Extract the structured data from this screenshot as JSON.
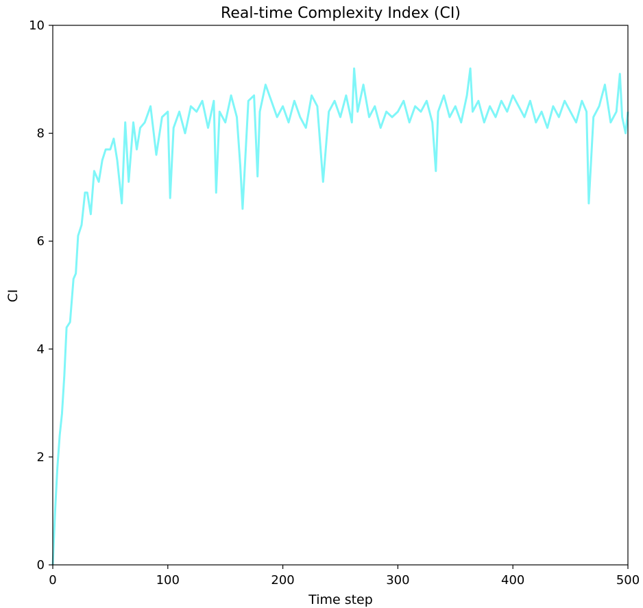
{
  "chart_data": {
    "type": "line",
    "title": "Real-time Complexity Index (CI)",
    "xlabel": "Time step",
    "ylabel": "CI",
    "xlim": [
      0,
      500
    ],
    "ylim": [
      0,
      10
    ],
    "xticks": [
      0,
      100,
      200,
      300,
      400,
      500
    ],
    "yticks": [
      0,
      2,
      4,
      6,
      8,
      10
    ],
    "grid": false,
    "legend": "none",
    "color": "#7ff6f8",
    "series": [
      {
        "x": [
          0,
          2,
          4,
          6,
          8,
          10,
          12,
          15,
          18,
          20,
          22,
          25,
          28,
          30,
          33,
          36,
          40,
          43,
          46,
          50,
          53,
          56,
          60,
          63,
          66,
          70,
          73,
          76,
          80,
          85,
          90,
          95,
          100,
          102,
          105,
          110,
          115,
          120,
          125,
          130,
          135,
          140,
          142,
          145,
          150,
          155,
          160,
          163,
          165,
          170,
          175,
          178,
          180,
          185,
          190,
          195,
          200,
          205,
          210,
          215,
          220,
          225,
          230,
          235,
          240,
          245,
          250,
          255,
          260,
          262,
          265,
          270,
          275,
          280,
          285,
          290,
          295,
          300,
          305,
          310,
          315,
          320,
          325,
          330,
          333,
          335,
          340,
          345,
          350,
          355,
          360,
          363,
          365,
          370,
          375,
          380,
          385,
          390,
          395,
          400,
          405,
          410,
          415,
          420,
          425,
          430,
          435,
          440,
          445,
          450,
          455,
          460,
          464,
          466,
          470,
          475,
          480,
          485,
          490,
          493,
          495,
          498,
          500
        ],
        "y": [
          0.0,
          1.0,
          1.8,
          2.4,
          2.8,
          3.5,
          4.4,
          4.5,
          5.3,
          5.4,
          6.1,
          6.3,
          6.9,
          6.9,
          6.5,
          7.3,
          7.1,
          7.5,
          7.7,
          7.7,
          7.9,
          7.5,
          6.7,
          8.2,
          7.1,
          8.2,
          7.7,
          8.1,
          8.2,
          8.5,
          7.6,
          8.3,
          8.4,
          6.8,
          8.1,
          8.4,
          8.0,
          8.5,
          8.4,
          8.6,
          8.1,
          8.6,
          6.9,
          8.4,
          8.2,
          8.7,
          8.3,
          7.4,
          6.6,
          8.6,
          8.7,
          7.2,
          8.4,
          8.9,
          8.6,
          8.3,
          8.5,
          8.2,
          8.6,
          8.3,
          8.1,
          8.7,
          8.5,
          7.1,
          8.4,
          8.6,
          8.3,
          8.7,
          8.2,
          9.2,
          8.4,
          8.9,
          8.3,
          8.5,
          8.1,
          8.4,
          8.3,
          8.4,
          8.6,
          8.2,
          8.5,
          8.4,
          8.6,
          8.2,
          7.3,
          8.4,
          8.7,
          8.3,
          8.5,
          8.2,
          8.7,
          9.2,
          8.4,
          8.6,
          8.2,
          8.5,
          8.3,
          8.6,
          8.4,
          8.7,
          8.5,
          8.3,
          8.6,
          8.2,
          8.4,
          8.1,
          8.5,
          8.3,
          8.6,
          8.4,
          8.2,
          8.6,
          8.4,
          6.7,
          8.3,
          8.5,
          8.9,
          8.2,
          8.4,
          9.1,
          8.3,
          8.0,
          8.4
        ]
      }
    ]
  }
}
